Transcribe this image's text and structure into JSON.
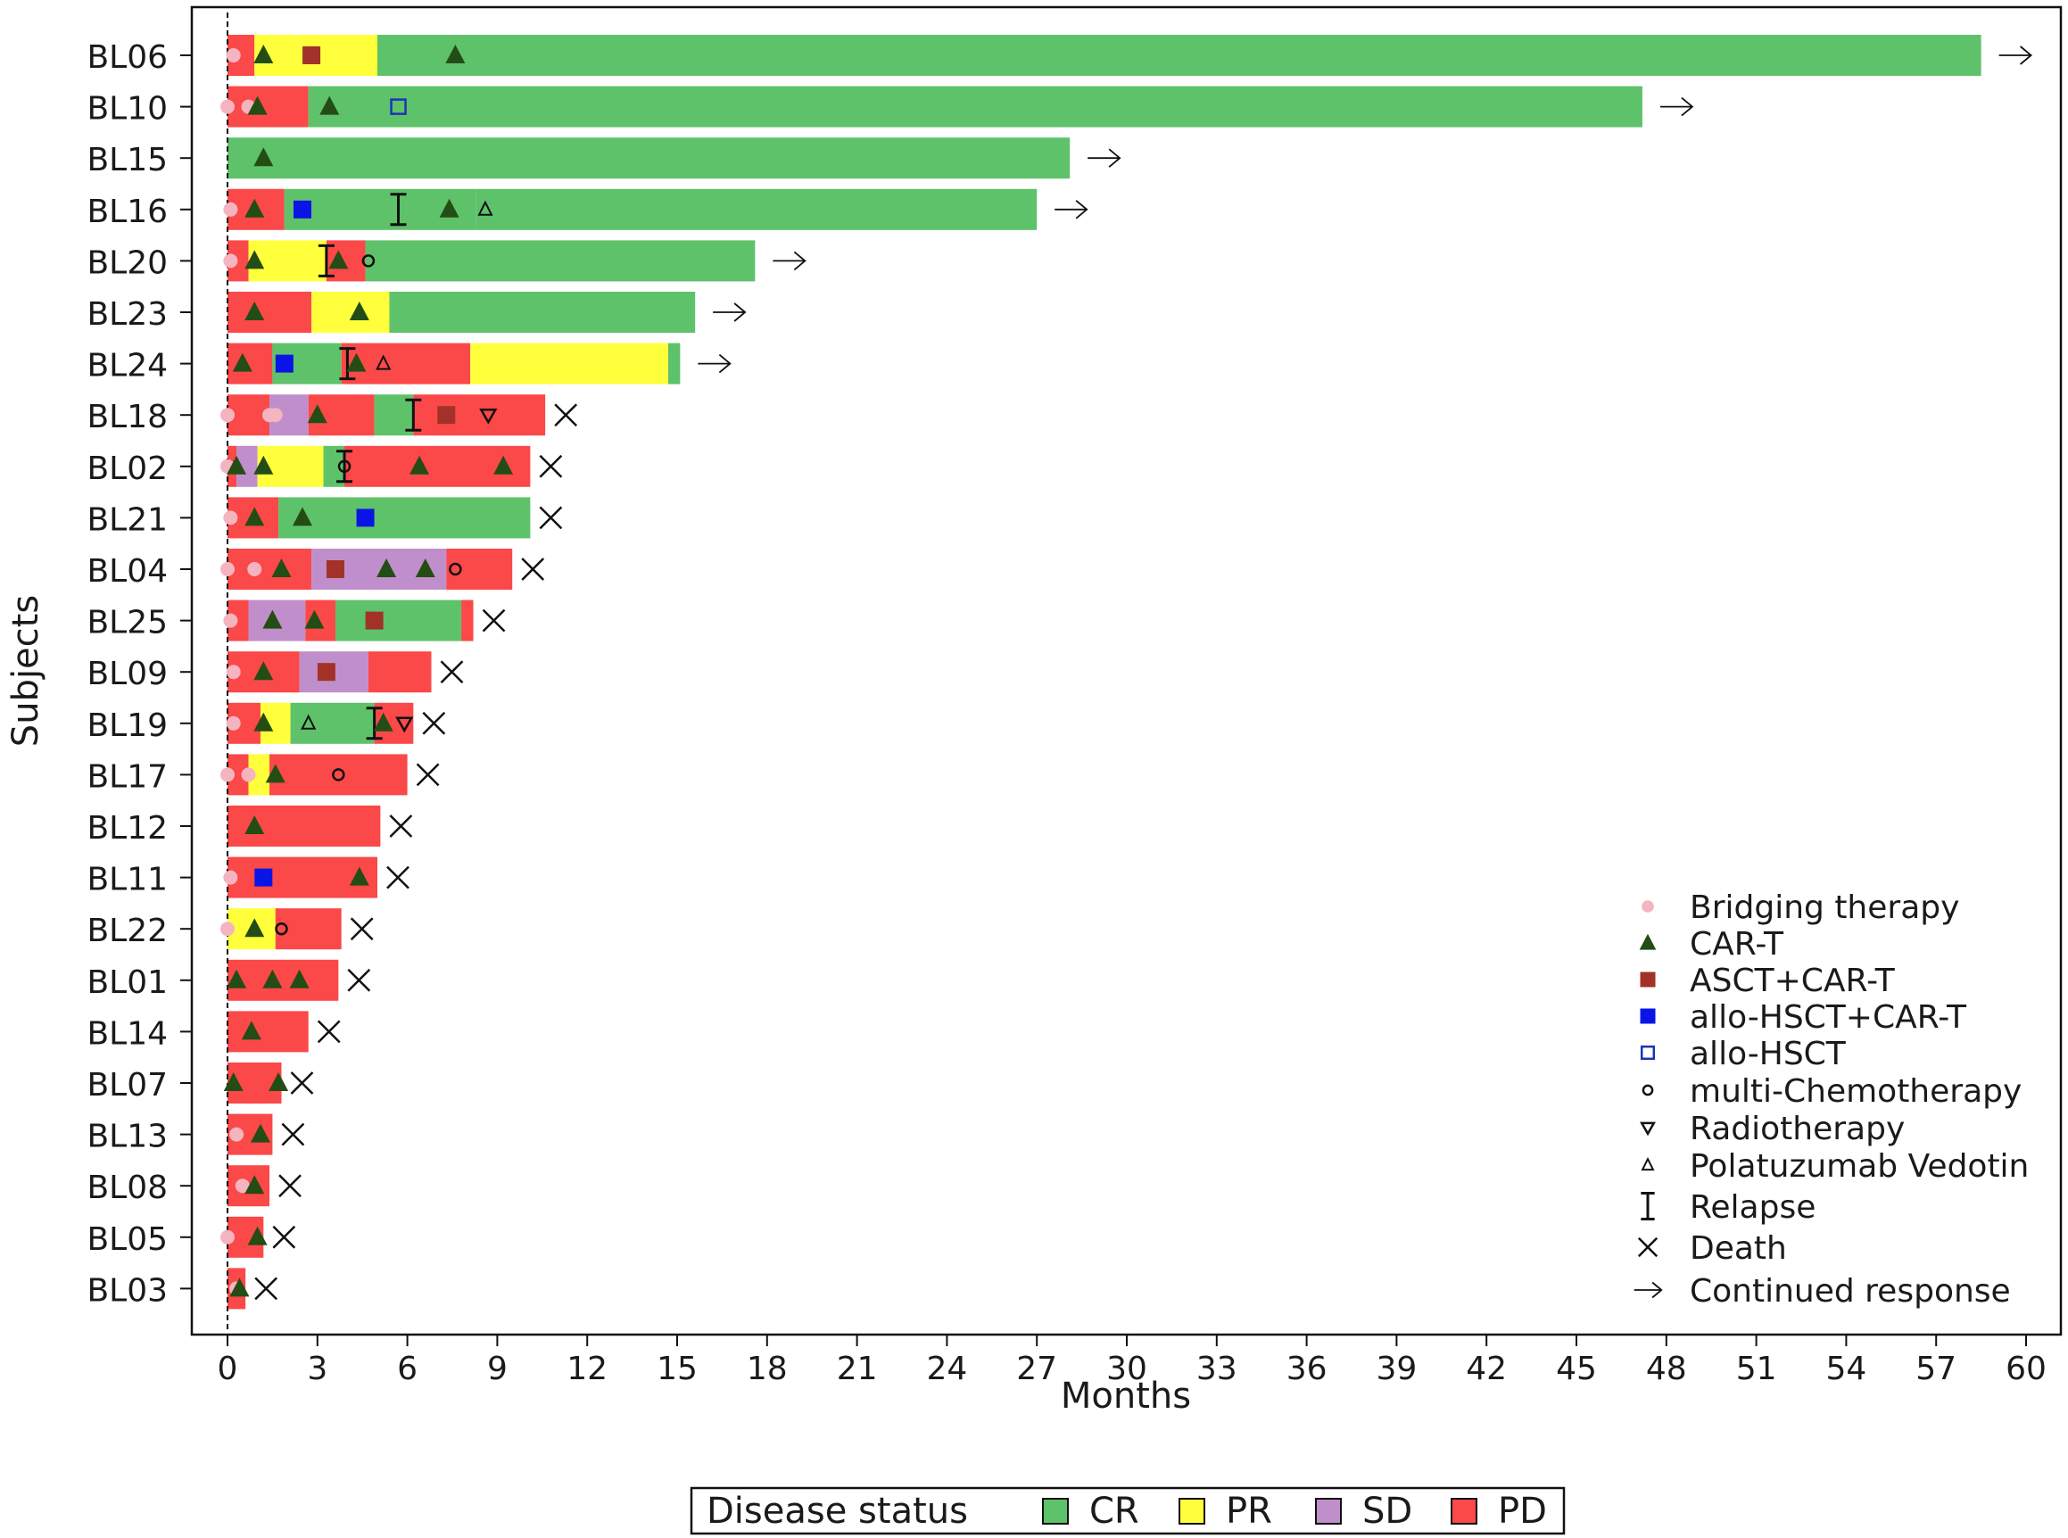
{
  "chart_data": {
    "type": "swimmer",
    "xlabel": "Months",
    "ylabel": "Subjects",
    "xlim": [
      -1.2,
      61.2
    ],
    "xticks": [
      0,
      3,
      6,
      9,
      12,
      15,
      18,
      21,
      24,
      27,
      30,
      33,
      36,
      39,
      42,
      45,
      48,
      51,
      54,
      57,
      60
    ],
    "status_legend_title": "Disease status",
    "status_colors": {
      "CR": "#5ec26a",
      "PR": "#ffff3c",
      "SD": "#c08fcb",
      "PD": "#fb4848"
    },
    "status_order": [
      "CR",
      "PR",
      "SD",
      "PD"
    ],
    "event_legend": [
      {
        "key": "bridging",
        "label": "Bridging therapy",
        "color": "#f4b4c0"
      },
      {
        "key": "cart",
        "label": "CAR-T",
        "color": "#234d14"
      },
      {
        "key": "asct",
        "label": "ASCT+CAR-T",
        "color": "#a23228"
      },
      {
        "key": "allo_cart",
        "label": "allo-HSCT+CAR-T",
        "color": "#0a14e6"
      },
      {
        "key": "allo",
        "label": "allo-HSCT",
        "color": "#1a34b4"
      },
      {
        "key": "chemo",
        "label": "multi-Chemotherapy",
        "color": "#111111"
      },
      {
        "key": "radio",
        "label": "Radiotherapy",
        "color": "#111111"
      },
      {
        "key": "pola",
        "label": "Polatuzumab Vedotin",
        "color": "#111111"
      },
      {
        "key": "relapse",
        "label": "Relapse",
        "color": "#111111"
      },
      {
        "key": "death",
        "label": "Death",
        "color": "#111111"
      },
      {
        "key": "continued",
        "label": "Continued response",
        "color": "#111111"
      }
    ],
    "subjects": [
      {
        "id": "BL06",
        "segments": [
          [
            "PD",
            0,
            0.9
          ],
          [
            "PR",
            0.9,
            5.0
          ],
          [
            "CR",
            5.0,
            58.5
          ]
        ],
        "events": [
          [
            "bridging",
            0.2
          ],
          [
            "cart",
            1.2
          ],
          [
            "asct",
            2.8
          ],
          [
            "cart",
            7.6
          ]
        ],
        "outcome": "continued",
        "end": 58.5
      },
      {
        "id": "BL10",
        "segments": [
          [
            "PD",
            0,
            2.7
          ],
          [
            "CR",
            2.7,
            47.2
          ]
        ],
        "events": [
          [
            "bridging",
            0.0
          ],
          [
            "bridging",
            0.7
          ],
          [
            "cart",
            1.0
          ],
          [
            "cart",
            3.4
          ],
          [
            "allo",
            5.7
          ]
        ],
        "outcome": "continued",
        "end": 47.2
      },
      {
        "id": "BL15",
        "segments": [
          [
            "CR",
            0,
            28.1
          ]
        ],
        "events": [
          [
            "cart",
            1.2
          ]
        ],
        "outcome": "continued",
        "end": 28.1
      },
      {
        "id": "BL16",
        "segments": [
          [
            "PD",
            0,
            1.9
          ],
          [
            "CR",
            1.9,
            8.3
          ],
          [
            "CR",
            8.3,
            27.0
          ]
        ],
        "events": [
          [
            "bridging",
            0.1
          ],
          [
            "cart",
            0.9
          ],
          [
            "allo_cart",
            2.5
          ],
          [
            "relapse",
            5.7
          ],
          [
            "cart",
            7.4
          ],
          [
            "pola",
            8.6
          ]
        ],
        "outcome": "continued",
        "end": 27.0
      },
      {
        "id": "BL20",
        "segments": [
          [
            "PD",
            0,
            0.7
          ],
          [
            "PR",
            0.7,
            3.3
          ],
          [
            "PD",
            3.3,
            4.6
          ],
          [
            "CR",
            4.6,
            17.6
          ]
        ],
        "events": [
          [
            "bridging",
            0.1
          ],
          [
            "cart",
            0.9
          ],
          [
            "relapse",
            3.3
          ],
          [
            "cart",
            3.7
          ],
          [
            "chemo",
            4.7
          ]
        ],
        "outcome": "continued",
        "end": 17.6
      },
      {
        "id": "BL23",
        "segments": [
          [
            "PD",
            0,
            2.8
          ],
          [
            "PR",
            2.8,
            5.4
          ],
          [
            "CR",
            5.4,
            15.6
          ]
        ],
        "events": [
          [
            "cart",
            0.9
          ],
          [
            "cart",
            4.4
          ]
        ],
        "outcome": "continued",
        "end": 15.6
      },
      {
        "id": "BL24",
        "segments": [
          [
            "PD",
            0,
            1.5
          ],
          [
            "CR",
            1.5,
            3.8
          ],
          [
            "PD",
            3.8,
            8.1
          ],
          [
            "PR",
            8.1,
            14.7
          ],
          [
            "CR",
            14.7,
            15.1
          ]
        ],
        "events": [
          [
            "cart",
            0.5
          ],
          [
            "allo_cart",
            1.9
          ],
          [
            "relapse",
            4.0
          ],
          [
            "cart",
            4.3
          ],
          [
            "pola",
            5.2
          ]
        ],
        "outcome": "continued",
        "end": 15.1
      },
      {
        "id": "BL18",
        "segments": [
          [
            "PD",
            0,
            1.4
          ],
          [
            "SD",
            1.4,
            2.7
          ],
          [
            "PD",
            2.7,
            4.9
          ],
          [
            "CR",
            4.9,
            6.2
          ],
          [
            "PD",
            6.2,
            10.6
          ]
        ],
        "events": [
          [
            "bridging",
            0.0
          ],
          [
            "bridging",
            1.4
          ],
          [
            "bridging",
            1.6
          ],
          [
            "cart",
            3.0
          ],
          [
            "relapse",
            6.2
          ],
          [
            "asct",
            7.3
          ],
          [
            "radio",
            8.7
          ]
        ],
        "outcome": "death",
        "end": 10.6
      },
      {
        "id": "BL02",
        "segments": [
          [
            "PD",
            0,
            0.3
          ],
          [
            "SD",
            0.3,
            1.0
          ],
          [
            "PR",
            1.0,
            3.2
          ],
          [
            "CR",
            3.2,
            3.9
          ],
          [
            "PD",
            3.9,
            10.1
          ]
        ],
        "events": [
          [
            "bridging",
            0.0
          ],
          [
            "cart",
            0.3
          ],
          [
            "cart",
            1.2
          ],
          [
            "relapse",
            3.9
          ],
          [
            "chemo",
            3.9
          ],
          [
            "cart",
            6.4
          ],
          [
            "cart",
            9.2
          ]
        ],
        "outcome": "death",
        "end": 10.1
      },
      {
        "id": "BL21",
        "segments": [
          [
            "PD",
            0,
            1.7
          ],
          [
            "CR",
            1.7,
            10.1
          ]
        ],
        "events": [
          [
            "bridging",
            0.1
          ],
          [
            "cart",
            0.9
          ],
          [
            "cart",
            2.5
          ],
          [
            "allo_cart",
            4.6
          ]
        ],
        "outcome": "death",
        "end": 10.1
      },
      {
        "id": "BL04",
        "segments": [
          [
            "PD",
            0,
            2.8
          ],
          [
            "SD",
            2.8,
            7.3
          ],
          [
            "PD",
            7.3,
            9.5
          ]
        ],
        "events": [
          [
            "bridging",
            0.0
          ],
          [
            "bridging",
            0.9
          ],
          [
            "cart",
            1.8
          ],
          [
            "asct",
            3.6
          ],
          [
            "cart",
            5.3
          ],
          [
            "cart",
            6.6
          ],
          [
            "chemo",
            7.6
          ]
        ],
        "outcome": "death",
        "end": 9.5
      },
      {
        "id": "BL25",
        "segments": [
          [
            "PD",
            0,
            0.7
          ],
          [
            "SD",
            0.7,
            2.6
          ],
          [
            "PD",
            2.6,
            3.6
          ],
          [
            "CR",
            3.6,
            7.8
          ],
          [
            "PD",
            7.8,
            8.2
          ]
        ],
        "events": [
          [
            "bridging",
            0.1
          ],
          [
            "cart",
            1.5
          ],
          [
            "cart",
            2.9
          ],
          [
            "asct",
            4.9
          ]
        ],
        "outcome": "death",
        "end": 8.2
      },
      {
        "id": "BL09",
        "segments": [
          [
            "PD",
            0,
            2.4
          ],
          [
            "SD",
            2.4,
            4.7
          ],
          [
            "PD",
            4.7,
            6.8
          ]
        ],
        "events": [
          [
            "bridging",
            0.2
          ],
          [
            "cart",
            1.2
          ],
          [
            "asct",
            3.3
          ]
        ],
        "outcome": "death",
        "end": 6.8
      },
      {
        "id": "BL19",
        "segments": [
          [
            "PD",
            0,
            1.1
          ],
          [
            "PR",
            1.1,
            2.1
          ],
          [
            "CR",
            2.1,
            4.9
          ],
          [
            "PD",
            4.9,
            6.2
          ]
        ],
        "events": [
          [
            "bridging",
            0.2
          ],
          [
            "cart",
            1.2
          ],
          [
            "pola",
            2.7
          ],
          [
            "relapse",
            4.9
          ],
          [
            "cart",
            5.2
          ],
          [
            "radio",
            5.9
          ]
        ],
        "outcome": "death",
        "end": 6.2
      },
      {
        "id": "BL17",
        "segments": [
          [
            "PD",
            0,
            0.7
          ],
          [
            "PR",
            0.7,
            1.4
          ],
          [
            "PD",
            1.4,
            6.0
          ]
        ],
        "events": [
          [
            "bridging",
            0.0
          ],
          [
            "bridging",
            0.7
          ],
          [
            "cart",
            1.6
          ],
          [
            "chemo",
            3.7
          ]
        ],
        "outcome": "death",
        "end": 6.0
      },
      {
        "id": "BL12",
        "segments": [
          [
            "PD",
            0,
            5.1
          ]
        ],
        "events": [
          [
            "cart",
            0.9
          ]
        ],
        "outcome": "death",
        "end": 5.1
      },
      {
        "id": "BL11",
        "segments": [
          [
            "PD",
            0,
            5.0
          ]
        ],
        "events": [
          [
            "bridging",
            0.1
          ],
          [
            "allo_cart",
            1.2
          ],
          [
            "cart",
            4.4
          ]
        ],
        "outcome": "death",
        "end": 5.0
      },
      {
        "id": "BL22",
        "segments": [
          [
            "PR",
            0,
            1.6
          ],
          [
            "PD",
            1.6,
            3.8
          ]
        ],
        "events": [
          [
            "bridging",
            0.0
          ],
          [
            "cart",
            0.9
          ],
          [
            "chemo",
            1.8
          ]
        ],
        "outcome": "death",
        "end": 3.8
      },
      {
        "id": "BL01",
        "segments": [
          [
            "PD",
            0,
            3.7
          ]
        ],
        "events": [
          [
            "cart",
            0.3
          ],
          [
            "cart",
            1.5
          ],
          [
            "cart",
            2.4
          ]
        ],
        "outcome": "death",
        "end": 3.7
      },
      {
        "id": "BL14",
        "segments": [
          [
            "PD",
            0,
            2.7
          ]
        ],
        "events": [
          [
            "cart",
            0.8
          ]
        ],
        "outcome": "death",
        "end": 2.7
      },
      {
        "id": "BL07",
        "segments": [
          [
            "PD",
            0,
            1.8
          ]
        ],
        "events": [
          [
            "cart",
            0.2
          ],
          [
            "cart",
            1.7
          ]
        ],
        "outcome": "death",
        "end": 1.8
      },
      {
        "id": "BL13",
        "segments": [
          [
            "PD",
            0,
            1.5
          ]
        ],
        "events": [
          [
            "bridging",
            0.3
          ],
          [
            "cart",
            1.1
          ]
        ],
        "outcome": "death",
        "end": 1.5
      },
      {
        "id": "BL08",
        "segments": [
          [
            "PD",
            0,
            1.4
          ]
        ],
        "events": [
          [
            "bridging",
            0.5
          ],
          [
            "cart",
            0.9
          ]
        ],
        "outcome": "death",
        "end": 1.4
      },
      {
        "id": "BL05",
        "segments": [
          [
            "PD",
            0,
            1.2
          ]
        ],
        "events": [
          [
            "bridging",
            0.0
          ],
          [
            "cart",
            1.0
          ]
        ],
        "outcome": "death",
        "end": 1.2
      },
      {
        "id": "BL03",
        "segments": [
          [
            "PD",
            0,
            0.6
          ]
        ],
        "events": [
          [
            "bridging",
            0.3
          ],
          [
            "cart",
            0.4
          ]
        ],
        "outcome": "death",
        "end": 0.6
      }
    ]
  }
}
